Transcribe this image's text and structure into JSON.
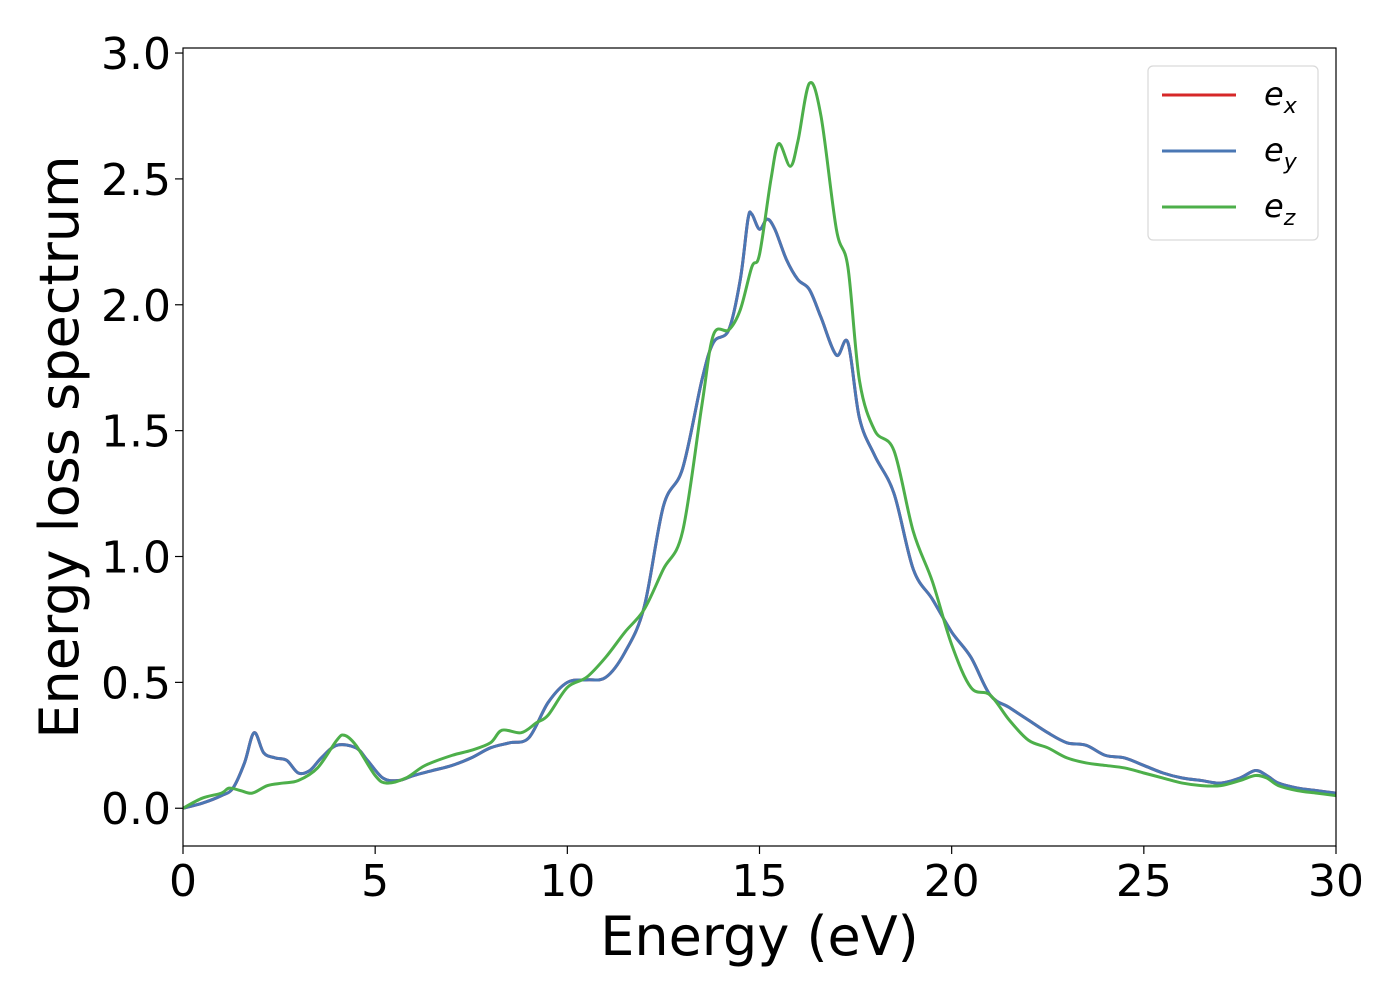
{
  "chart_data": {
    "type": "line",
    "xlabel": "Energy (eV)",
    "ylabel": "Energy loss spectrum",
    "xlim": [
      0,
      30
    ],
    "ylim": [
      -0.15,
      3.02
    ],
    "xticks": [
      0,
      5,
      10,
      15,
      20,
      25,
      30
    ],
    "xtick_labels": [
      "0",
      "5",
      "10",
      "15",
      "20",
      "25",
      "30"
    ],
    "yticks": [
      0.0,
      0.5,
      1.0,
      1.5,
      2.0,
      2.5,
      3.0
    ],
    "ytick_labels": [
      "0.0",
      "0.5",
      "1.0",
      "1.5",
      "2.0",
      "2.5",
      "3.0"
    ],
    "grid": false,
    "legend_position": "top-right",
    "series": [
      {
        "name": "e_x",
        "base": "e",
        "sub": "x",
        "color": "#d62728",
        "x": [
          0,
          0.5,
          1,
          1.3,
          1.6,
          1.85,
          2.1,
          2.4,
          2.7,
          3,
          3.3,
          3.6,
          4,
          4.5,
          4.8,
          5.2,
          5.6,
          6,
          6.5,
          7,
          7.5,
          8,
          8.5,
          9,
          9.5,
          10,
          10.5,
          11,
          11.5,
          12,
          12.5,
          13,
          13.5,
          13.8,
          14.2,
          14.5,
          14.7,
          14.8,
          15,
          15.2,
          15.4,
          15.7,
          16,
          16.3,
          16.6,
          17,
          17.3,
          17.6,
          18,
          18.5,
          19,
          19.5,
          20,
          20.5,
          21,
          21.5,
          22,
          22.5,
          23,
          23.5,
          24,
          24.5,
          25,
          25.5,
          26,
          26.5,
          27,
          27.5,
          27.9,
          28.2,
          28.5,
          29,
          29.5,
          30
        ],
        "y": [
          0,
          0.02,
          0.05,
          0.08,
          0.18,
          0.3,
          0.22,
          0.2,
          0.19,
          0.14,
          0.15,
          0.2,
          0.25,
          0.24,
          0.19,
          0.12,
          0.11,
          0.13,
          0.15,
          0.17,
          0.2,
          0.24,
          0.26,
          0.28,
          0.42,
          0.5,
          0.51,
          0.52,
          0.62,
          0.8,
          1.2,
          1.35,
          1.7,
          1.85,
          1.9,
          2.1,
          2.34,
          2.36,
          2.3,
          2.34,
          2.3,
          2.18,
          2.1,
          2.06,
          1.95,
          1.8,
          1.85,
          1.55,
          1.4,
          1.25,
          0.95,
          0.83,
          0.7,
          0.6,
          0.45,
          0.4,
          0.35,
          0.3,
          0.26,
          0.25,
          0.21,
          0.2,
          0.17,
          0.14,
          0.12,
          0.11,
          0.1,
          0.12,
          0.15,
          0.13,
          0.1,
          0.08,
          0.07,
          0.06
        ]
      },
      {
        "name": "e_y",
        "base": "e",
        "sub": "y",
        "color": "#4a77b4",
        "x": [
          0,
          0.5,
          1,
          1.3,
          1.6,
          1.85,
          2.1,
          2.4,
          2.7,
          3,
          3.3,
          3.6,
          4,
          4.5,
          4.8,
          5.2,
          5.6,
          6,
          6.5,
          7,
          7.5,
          8,
          8.5,
          9,
          9.5,
          10,
          10.5,
          11,
          11.5,
          12,
          12.5,
          13,
          13.5,
          13.8,
          14.2,
          14.5,
          14.7,
          14.8,
          15,
          15.2,
          15.4,
          15.7,
          16,
          16.3,
          16.6,
          17,
          17.3,
          17.6,
          18,
          18.5,
          19,
          19.5,
          20,
          20.5,
          21,
          21.5,
          22,
          22.5,
          23,
          23.5,
          24,
          24.5,
          25,
          25.5,
          26,
          26.5,
          27,
          27.5,
          27.9,
          28.2,
          28.5,
          29,
          29.5,
          30
        ],
        "y": [
          0,
          0.02,
          0.05,
          0.08,
          0.18,
          0.3,
          0.22,
          0.2,
          0.19,
          0.14,
          0.15,
          0.2,
          0.25,
          0.24,
          0.19,
          0.12,
          0.11,
          0.13,
          0.15,
          0.17,
          0.2,
          0.24,
          0.26,
          0.28,
          0.42,
          0.5,
          0.51,
          0.52,
          0.62,
          0.8,
          1.2,
          1.35,
          1.7,
          1.85,
          1.9,
          2.1,
          2.34,
          2.36,
          2.3,
          2.34,
          2.3,
          2.18,
          2.1,
          2.06,
          1.95,
          1.8,
          1.85,
          1.55,
          1.4,
          1.25,
          0.95,
          0.83,
          0.7,
          0.6,
          0.45,
          0.4,
          0.35,
          0.3,
          0.26,
          0.25,
          0.21,
          0.2,
          0.17,
          0.14,
          0.12,
          0.11,
          0.1,
          0.12,
          0.15,
          0.13,
          0.1,
          0.08,
          0.07,
          0.06
        ]
      },
      {
        "name": "e_z",
        "base": "e",
        "sub": "z",
        "color": "#4daf4a",
        "x": [
          0,
          0.5,
          1,
          1.2,
          1.5,
          1.8,
          2.2,
          2.6,
          3,
          3.5,
          4,
          4.2,
          4.5,
          5,
          5.3,
          5.8,
          6.3,
          7,
          7.5,
          8,
          8.3,
          8.8,
          9.2,
          9.5,
          10,
          10.5,
          11,
          11.5,
          12,
          12.5,
          13,
          13.5,
          13.8,
          14.2,
          14.5,
          14.8,
          15,
          15.3,
          15.5,
          15.8,
          16,
          16.3,
          16.6,
          17,
          17.3,
          17.6,
          18,
          18.5,
          19,
          19.5,
          20,
          20.5,
          21,
          21.5,
          22,
          22.5,
          23,
          23.5,
          24,
          24.5,
          25,
          25.5,
          26,
          26.5,
          27,
          27.5,
          27.9,
          28.2,
          28.5,
          29,
          29.5,
          30
        ],
        "y": [
          0,
          0.04,
          0.06,
          0.08,
          0.07,
          0.06,
          0.09,
          0.1,
          0.11,
          0.16,
          0.27,
          0.29,
          0.25,
          0.13,
          0.1,
          0.12,
          0.17,
          0.21,
          0.23,
          0.26,
          0.31,
          0.3,
          0.34,
          0.37,
          0.48,
          0.52,
          0.6,
          0.7,
          0.79,
          0.95,
          1.1,
          1.6,
          1.88,
          1.9,
          1.98,
          2.15,
          2.2,
          2.5,
          2.64,
          2.55,
          2.65,
          2.88,
          2.75,
          2.3,
          2.15,
          1.7,
          1.5,
          1.42,
          1.1,
          0.9,
          0.65,
          0.48,
          0.45,
          0.35,
          0.27,
          0.24,
          0.2,
          0.18,
          0.17,
          0.16,
          0.14,
          0.12,
          0.1,
          0.09,
          0.09,
          0.11,
          0.13,
          0.12,
          0.09,
          0.07,
          0.06,
          0.05
        ]
      }
    ]
  }
}
